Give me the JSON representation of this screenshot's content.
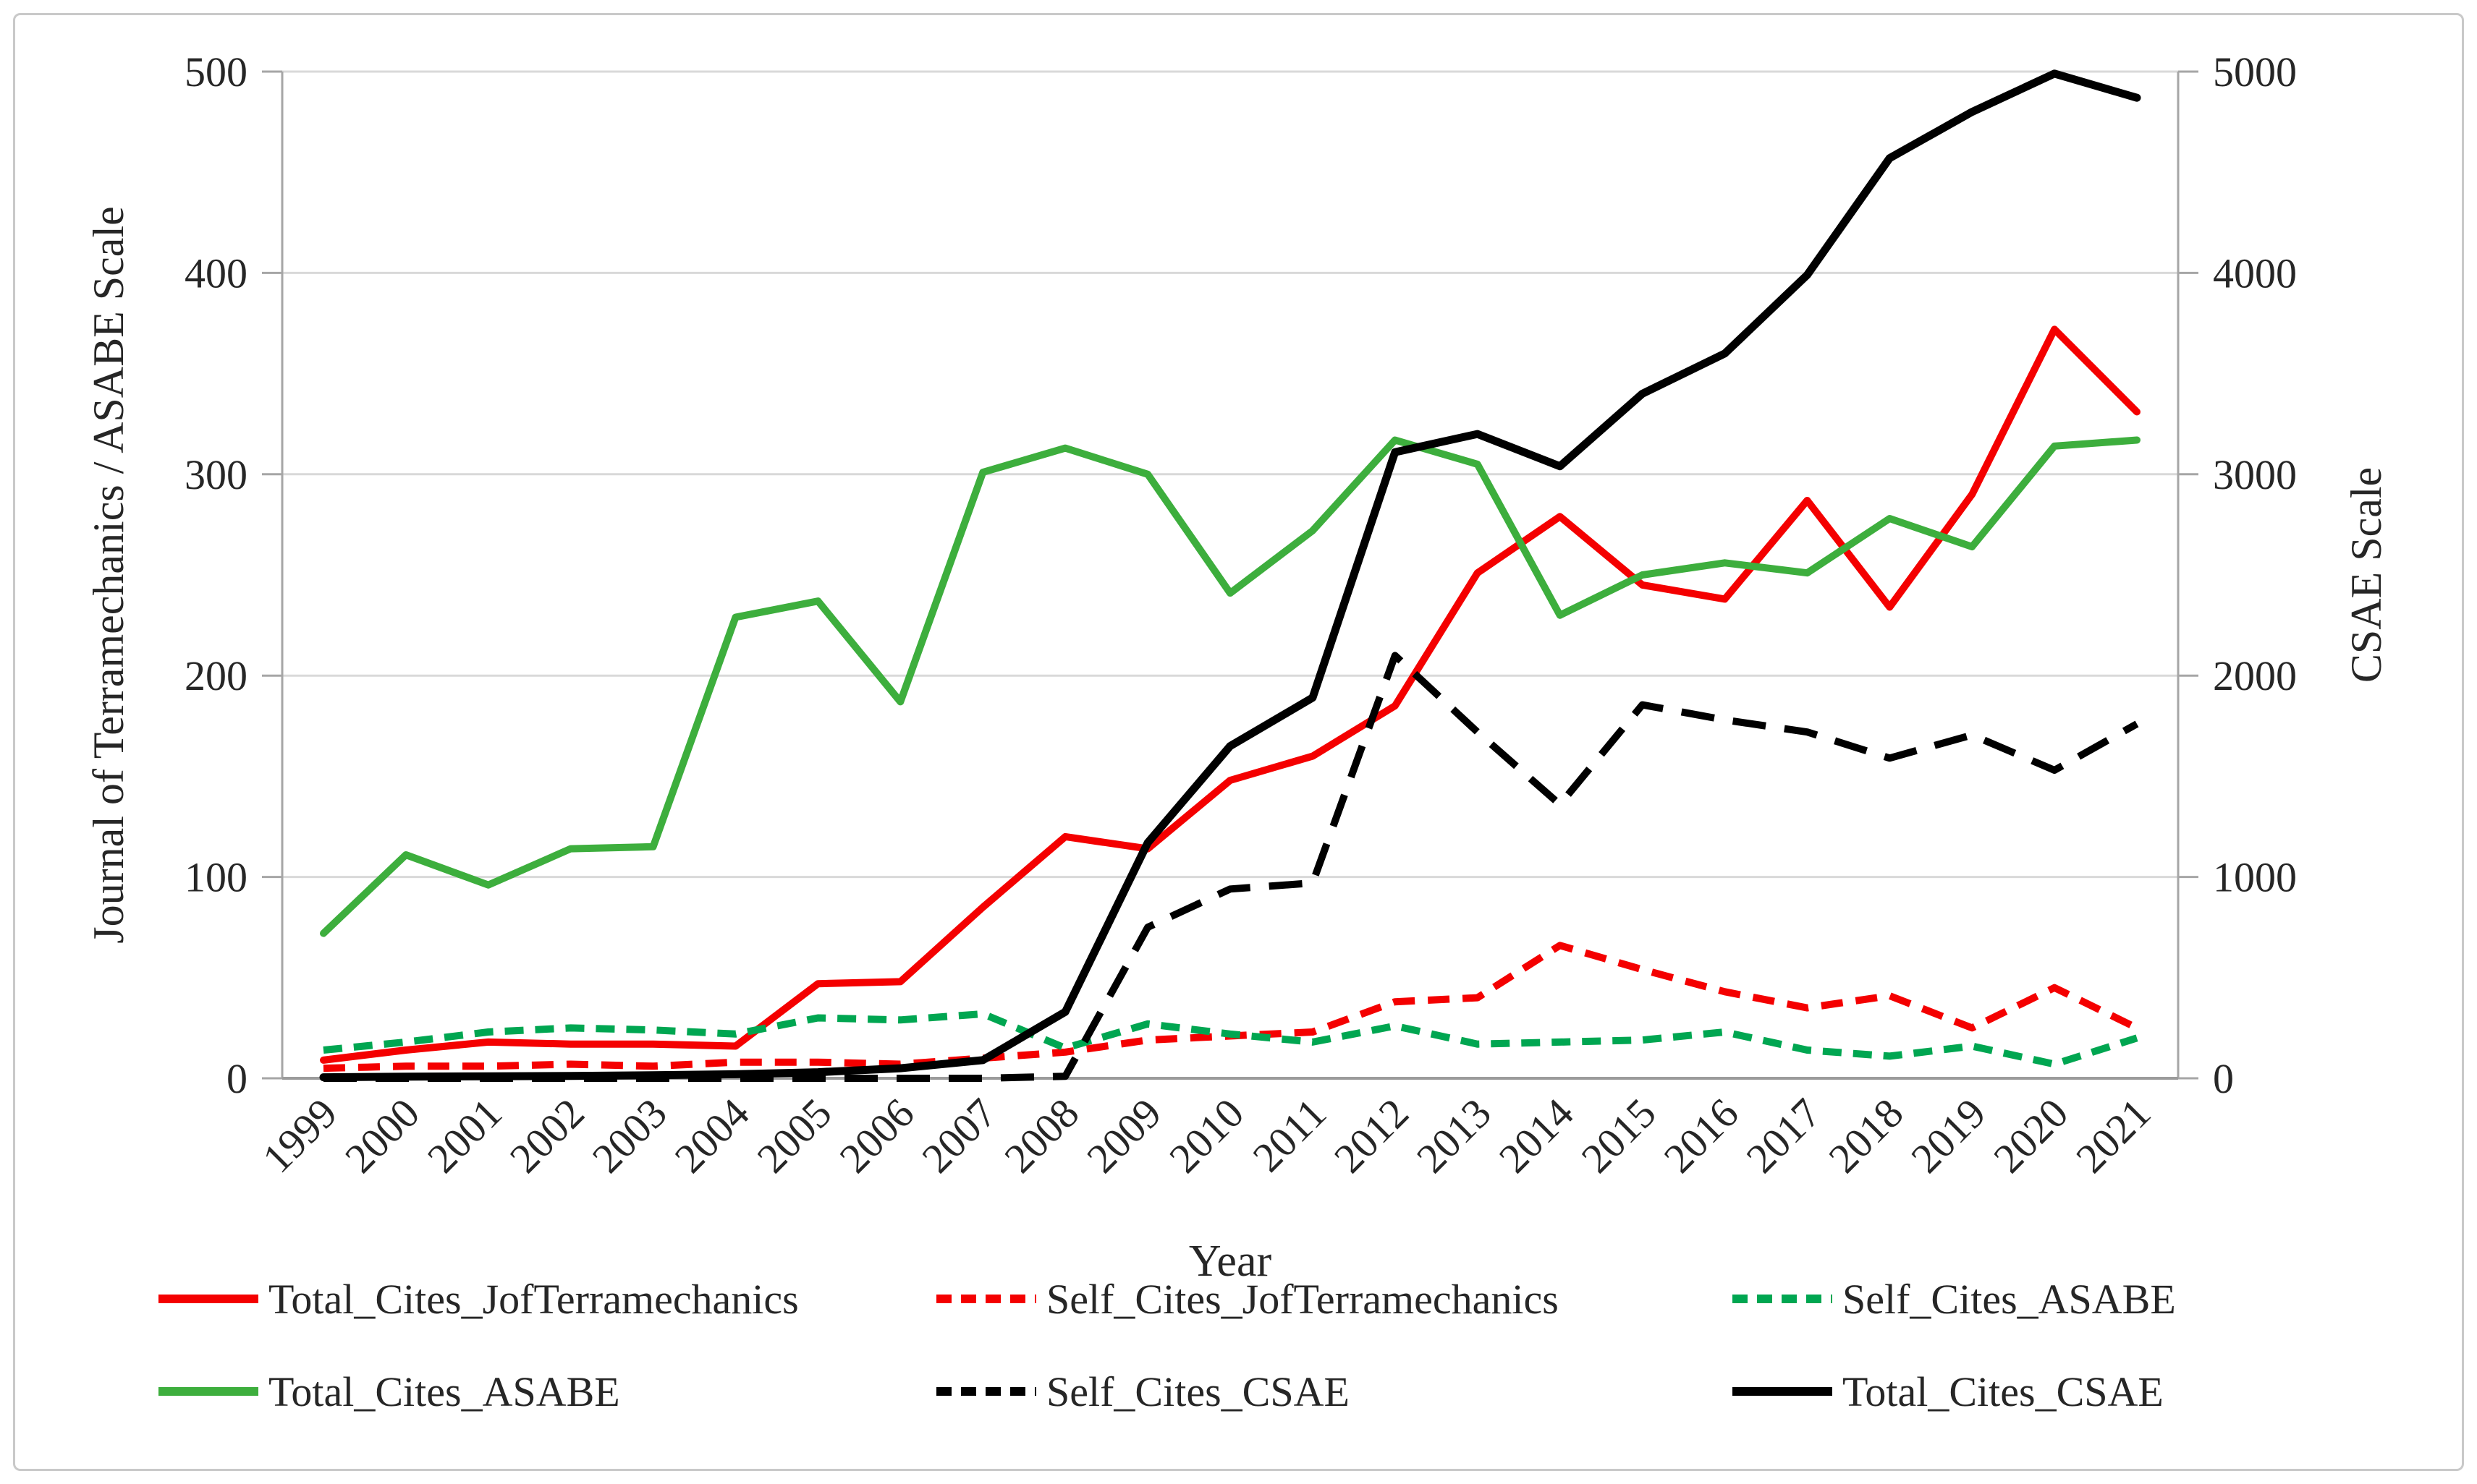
{
  "figure": {
    "background": "#FFFFFF",
    "border_color": "#C9C9C9",
    "text_color": "#262626",
    "gridline_color": "#D9D9D9",
    "axis_line_color": "#A6A6A6"
  },
  "chart_data": {
    "type": "line",
    "grid": true,
    "legend_position": "bottom",
    "x_axis": {
      "title": "Year",
      "categories": [
        1999,
        2000,
        2001,
        2002,
        2003,
        2004,
        2005,
        2006,
        2007,
        2008,
        2009,
        2010,
        2011,
        2012,
        2013,
        2014,
        2015,
        2016,
        2017,
        2018,
        2019,
        2020,
        2021
      ],
      "label_rotation_deg": -45
    },
    "left_axis": {
      "title": "Journal of Terramechanics / ASABE Scale",
      "range": [
        0,
        500
      ],
      "tick_step": 100,
      "ticks": [
        0,
        100,
        200,
        300,
        400,
        500
      ]
    },
    "right_axis": {
      "title": "CSAE Scale",
      "range": [
        0,
        5000
      ],
      "tick_step": 1000,
      "ticks": [
        0,
        1000,
        2000,
        3000,
        4000,
        5000
      ]
    },
    "series": [
      {
        "name": "Total_Cites_JofTerramechanics",
        "axis": "left",
        "color": "#F40000",
        "line_style": "solid",
        "values": [
          9,
          14,
          18,
          17,
          17,
          16,
          47,
          48,
          85,
          120,
          114,
          148,
          160,
          185,
          251,
          279,
          245,
          238,
          287,
          234,
          290,
          372,
          331
        ]
      },
      {
        "name": "Self_Cites_JofTerramechanics",
        "axis": "left",
        "color": "#F40000",
        "line_style": "dashed",
        "values": [
          5,
          6,
          6,
          7,
          6,
          8,
          8,
          7,
          10,
          13,
          19,
          21,
          23,
          38,
          40,
          66,
          54,
          43,
          35,
          41,
          25,
          45,
          25
        ]
      },
      {
        "name": "Self_Cites_ASABE",
        "axis": "left",
        "color": "#00A651",
        "line_style": "dashed",
        "values": [
          14,
          18,
          23,
          25,
          24,
          22,
          30,
          29,
          32,
          15,
          27,
          22,
          18,
          26,
          17,
          18,
          19,
          23,
          14,
          11,
          16,
          7,
          20
        ]
      },
      {
        "name": "Total_Cites_ASABE",
        "axis": "left",
        "color": "#3DAE3D",
        "line_style": "solid",
        "values": [
          72,
          111,
          96,
          114,
          115,
          229,
          237,
          187,
          301,
          313,
          300,
          241,
          272,
          317,
          305,
          230,
          250,
          256,
          251,
          278,
          264,
          314,
          317
        ]
      },
      {
        "name": "Self_Cites_CSAE",
        "axis": "right",
        "color": "#000000",
        "line_style": "dashed",
        "values": [
          0,
          0,
          0,
          0,
          0,
          0,
          0,
          0,
          0,
          10,
          750,
          940,
          970,
          2100,
          1720,
          1360,
          1855,
          1780,
          1720,
          1590,
          1705,
          1530,
          1760
        ]
      },
      {
        "name": "Total_Cites_CSAE",
        "axis": "right",
        "color": "#000000",
        "line_style": "solid",
        "values": [
          5,
          8,
          10,
          12,
          15,
          20,
          30,
          50,
          90,
          330,
          1170,
          1650,
          1890,
          3110,
          3200,
          3040,
          3400,
          3600,
          3990,
          4570,
          4800,
          4990,
          4870
        ]
      }
    ],
    "legend_order": [
      "Total_Cites_JofTerramechanics",
      "Self_Cites_JofTerramechanics",
      "Self_Cites_ASABE",
      "Total_Cites_ASABE",
      "Self_Cites_CSAE",
      "Total_Cites_CSAE"
    ]
  }
}
